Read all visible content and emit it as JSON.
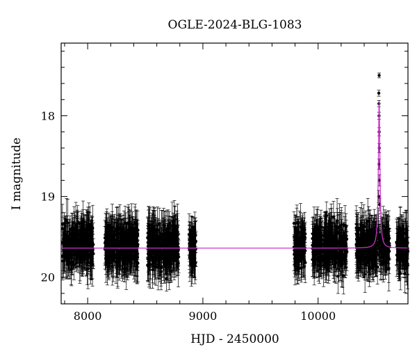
{
  "chart_data": {
    "type": "scatter",
    "title": "OGLE-2024-BLG-1083",
    "xlabel": "HJD - 2450000",
    "ylabel": "I magnitude",
    "xlim": [
      7770,
      10780
    ],
    "ylim": [
      20.33,
      17.1
    ],
    "y_inverted": true,
    "x_ticks": [
      8000,
      9000,
      10000
    ],
    "y_ticks": [
      18,
      19,
      20
    ],
    "grid": false,
    "colors": {
      "data": "#000000",
      "model": "#cc33cc"
    },
    "series": [
      {
        "type": "errorbar-scatter",
        "seasons": [
          {
            "x_range": [
              7780,
              8050
            ],
            "mag_center": 19.6,
            "mag_spread": 0.22
          },
          {
            "x_range": [
              8150,
              8440
            ],
            "mag_center": 19.6,
            "mag_spread": 0.22
          },
          {
            "x_range": [
              8520,
              8790
            ],
            "mag_center": 19.63,
            "mag_spread": 0.24
          },
          {
            "x_range": [
              8880,
              8940
            ],
            "mag_center": 19.65,
            "mag_spread": 0.2
          },
          {
            "x_range": [
              9790,
              9890
            ],
            "mag_center": 19.62,
            "mag_spread": 0.22
          },
          {
            "x_range": [
              9950,
              10250
            ],
            "mag_center": 19.62,
            "mag_spread": 0.22
          },
          {
            "x_range": [
              10330,
              10620
            ],
            "mag_center": 19.62,
            "mag_spread": 0.22
          },
          {
            "x_range": [
              10680,
              10780
            ],
            "mag_center": 19.65,
            "mag_spread": 0.22
          }
        ],
        "peak_points": [
          {
            "x": 10530,
            "y": 17.5
          },
          {
            "x": 10527,
            "y": 17.72
          },
          {
            "x": 10528,
            "y": 17.85
          },
          {
            "x": 10529,
            "y": 18.0
          },
          {
            "x": 10530,
            "y": 18.2
          },
          {
            "x": 10531,
            "y": 18.4
          },
          {
            "x": 10529,
            "y": 18.6
          },
          {
            "x": 10532,
            "y": 18.8
          },
          {
            "x": 10526,
            "y": 19.0
          },
          {
            "x": 10534,
            "y": 19.1
          }
        ]
      },
      {
        "type": "model-line",
        "baseline": 19.64,
        "t0": 10530,
        "peak_mag": 17.82,
        "width": 14
      }
    ]
  }
}
